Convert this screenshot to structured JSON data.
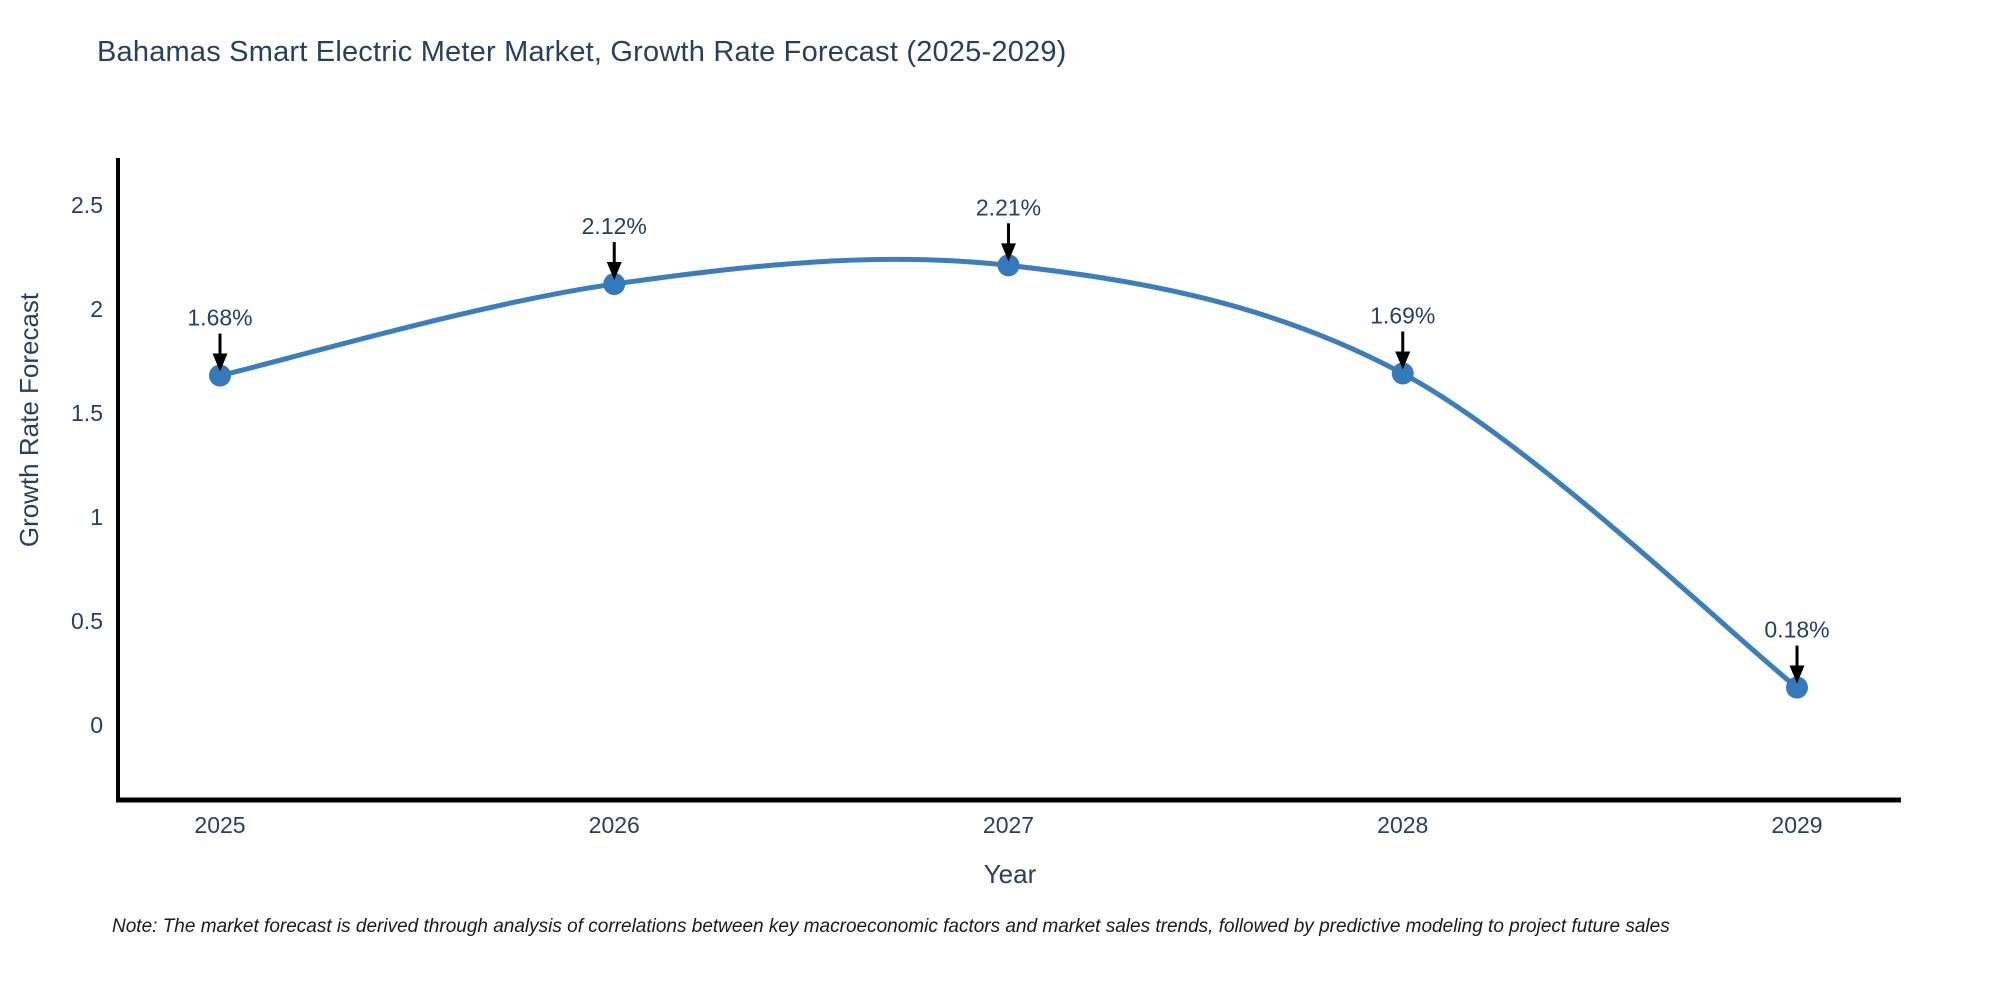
{
  "title": "Bahamas Smart Electric Meter Market, Growth Rate Forecast (2025-2029)",
  "note": "Note: The market forecast is derived through analysis of correlations between key macroeconomic factors and market sales trends, followed by predictive modeling to project future sales",
  "chart_data": {
    "type": "line",
    "title": "Bahamas Smart Electric Meter Market, Growth Rate Forecast (2025-2029)",
    "x": [
      2025,
      2026,
      2027,
      2028,
      2029
    ],
    "series": [
      {
        "name": "Growth Rate Forecast",
        "values": [
          1.68,
          2.12,
          2.21,
          1.69,
          0.18
        ]
      }
    ],
    "point_labels": [
      "1.68%",
      "2.12%",
      "2.21%",
      "1.69%",
      "0.18%"
    ],
    "xlabel": "Year",
    "ylabel": "Growth Rate Forecast",
    "xticks": [
      "2025",
      "2026",
      "2027",
      "2028",
      "2029"
    ],
    "yticks": [
      "0",
      "0.5",
      "1",
      "1.5",
      "2",
      "2.5"
    ],
    "ylim": [
      -0.36,
      2.72
    ],
    "grid": false,
    "legend": "none",
    "line_shape": "spline",
    "annotation_style": "arrow-down-to-point",
    "colors": {
      "line": "#3a7ebf",
      "marker": "#3579bd",
      "axis": "#000000",
      "tick_text": "#2a3f5f",
      "title_text": "#2a3f5f",
      "annotation_text": "#2a3f5f",
      "arrow": "#000000",
      "note_text": "#1a1a1a",
      "background": "#ffffff"
    }
  }
}
